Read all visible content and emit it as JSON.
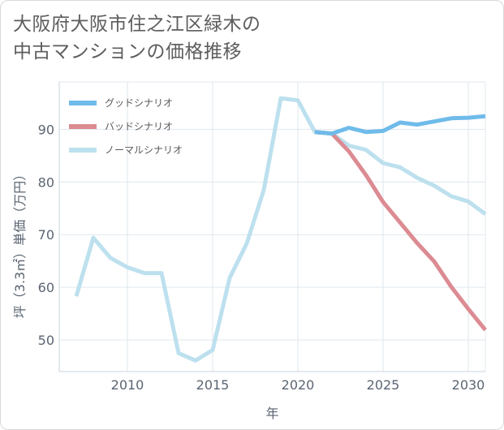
{
  "title": {
    "line1": "大阪府大阪市住之江区緑木の",
    "line2": "中古マンションの価格推移"
  },
  "chart_data": {
    "type": "line",
    "xlabel": "年",
    "ylabel": "坪（3.3㎡）単価（万円）",
    "xlim": [
      2006,
      2031
    ],
    "ylim": [
      44,
      99
    ],
    "xticks": [
      2010,
      2015,
      2020,
      2025,
      2030
    ],
    "yticks": [
      50,
      60,
      70,
      80,
      90
    ],
    "grid": true,
    "legend_position": "top-left",
    "series": [
      {
        "name": "グッドシナリオ",
        "color": "#6fbbea",
        "x": [
          2021,
          2022,
          2023,
          2024,
          2025,
          2026,
          2027,
          2028,
          2029,
          2030,
          2031
        ],
        "y": [
          89.5,
          89.2,
          90.3,
          89.5,
          89.7,
          91.3,
          90.9,
          91.5,
          92.1,
          92.2,
          92.5
        ]
      },
      {
        "name": "バッドシナリオ",
        "color": "#dc8b92",
        "x": [
          2021,
          2022,
          2023,
          2024,
          2025,
          2026,
          2027,
          2028,
          2029,
          2030,
          2031
        ],
        "y": [
          89.5,
          89.2,
          85.8,
          81.3,
          76.2,
          72.3,
          68.4,
          64.9,
          60.1,
          55.9,
          51.9
        ]
      },
      {
        "name": "ノーマルシナリオ",
        "color": "#bde0ee",
        "x": [
          2007,
          2008,
          2009,
          2010,
          2011,
          2012,
          2013,
          2014,
          2015,
          2016,
          2017,
          2018,
          2019,
          2020,
          2021,
          2022,
          2023,
          2024,
          2025,
          2026,
          2027,
          2028,
          2029,
          2030,
          2031
        ],
        "y": [
          58.3,
          69.4,
          65.6,
          63.8,
          62.7,
          62.7,
          47.5,
          46.1,
          48.1,
          61.8,
          68.3,
          78.5,
          95.9,
          95.5,
          89.5,
          89.2,
          86.9,
          86.1,
          83.6,
          82.8,
          80.8,
          79.3,
          77.3,
          76.3,
          73.9
        ]
      }
    ]
  }
}
